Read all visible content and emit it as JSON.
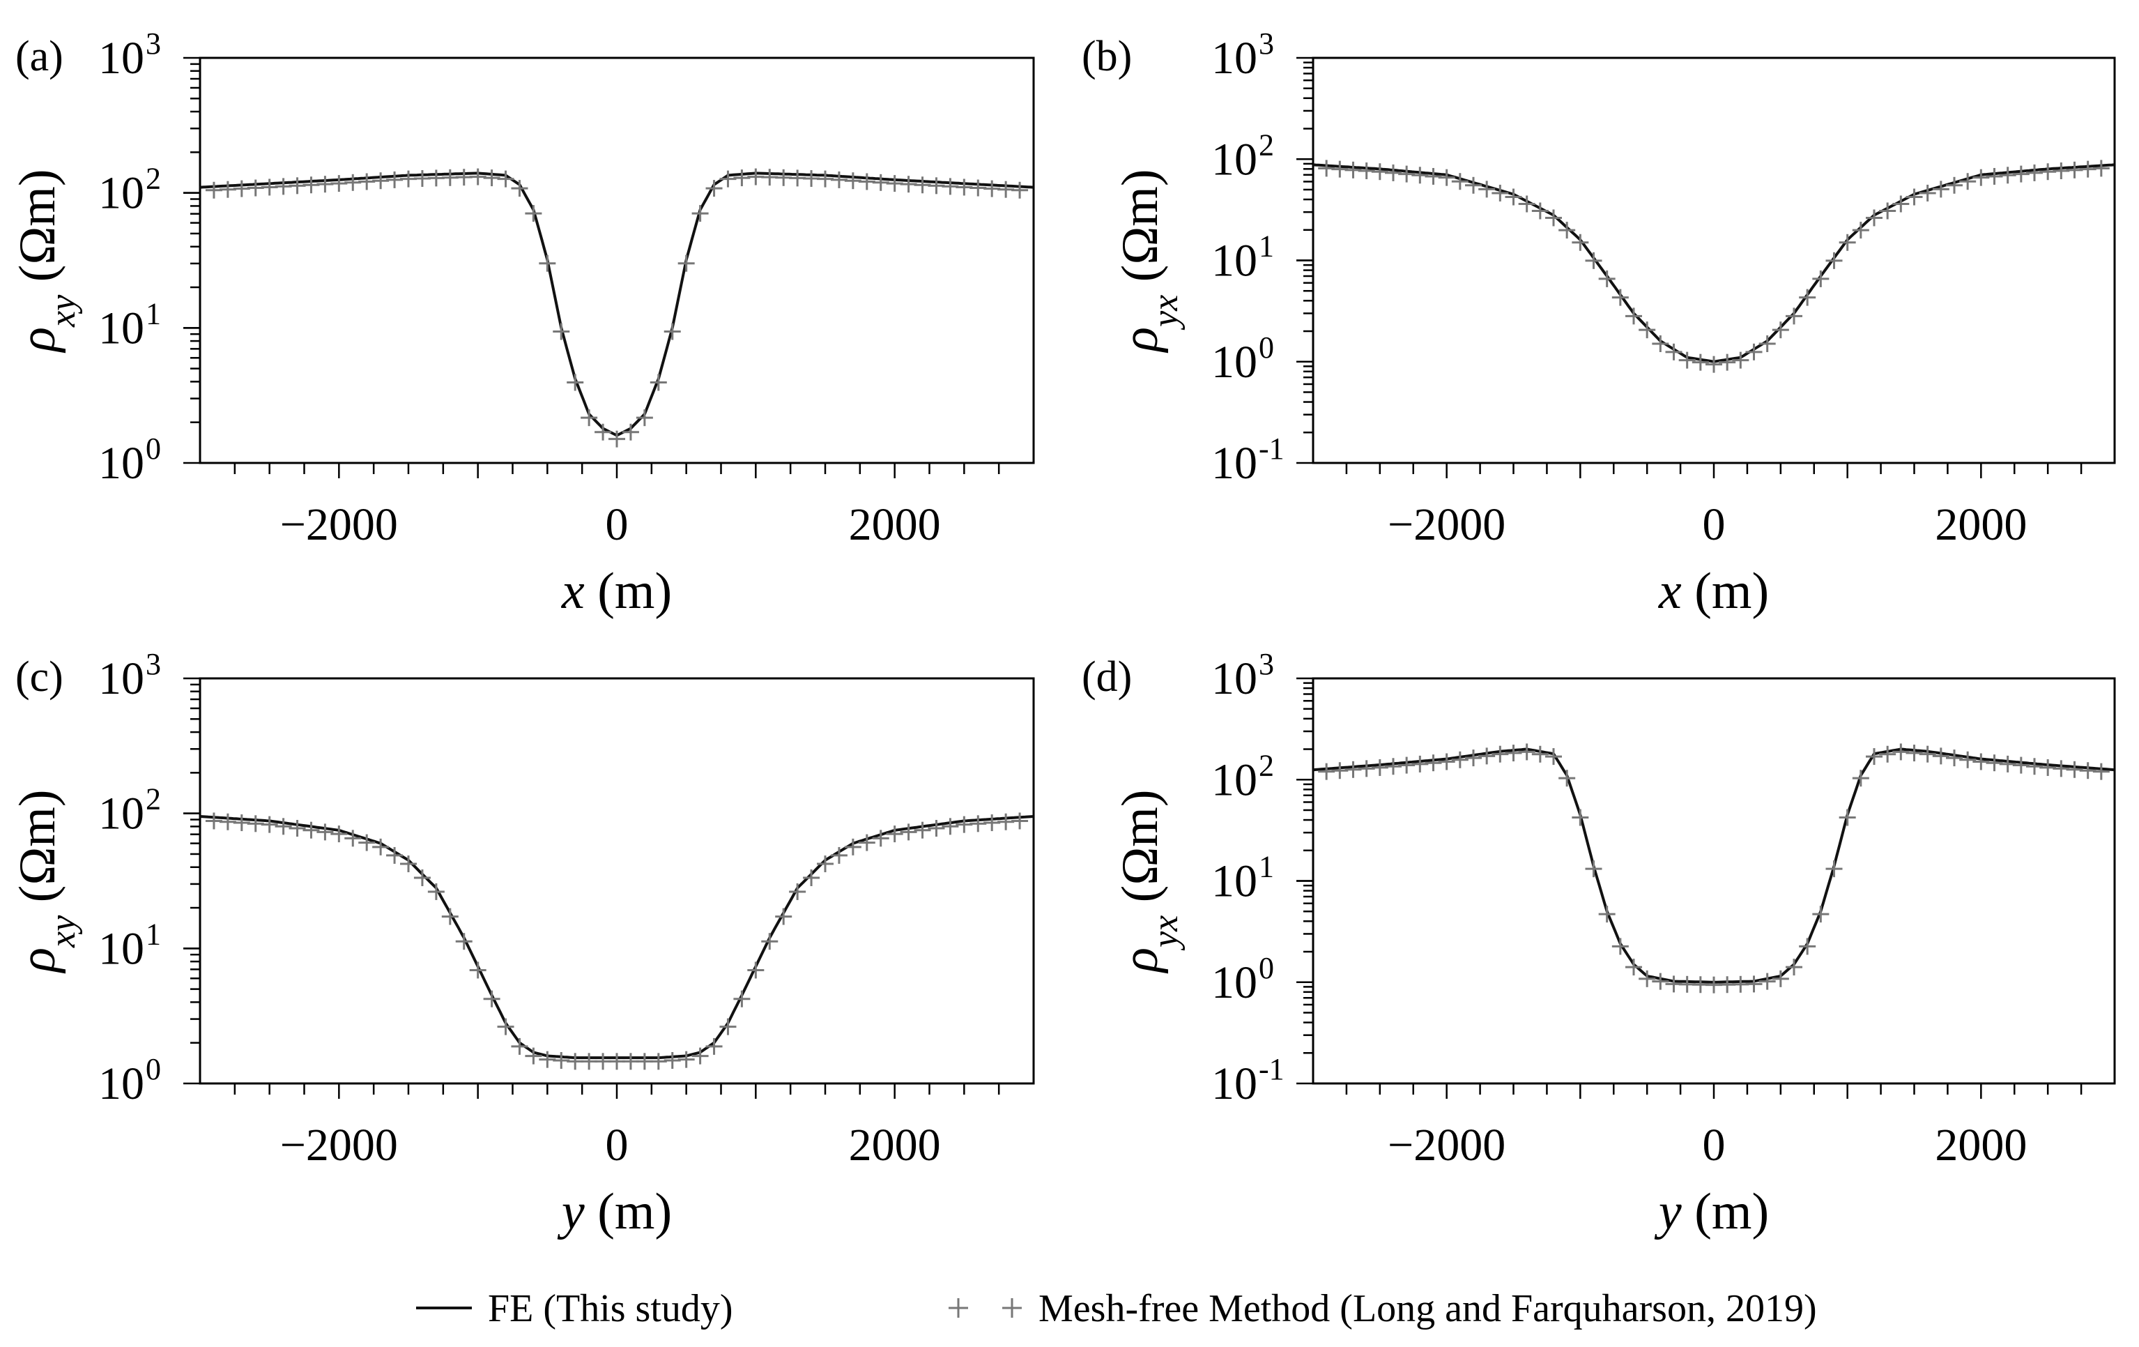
{
  "legend": {
    "fe_label": "FE (This study)",
    "mf_marker": "+ +",
    "mf_label": "Mesh-free Method (Long and Farquharson, 2019)"
  },
  "colors": {
    "fe_line": "#111111",
    "mesh_free": "#777777",
    "axes": "#000000"
  },
  "chart_data": [
    {
      "type": "line",
      "panel": "(a)",
      "xlabel_var": "x",
      "xlabel_unit": " (m)",
      "ylabel_sym": "ρ",
      "ylabel_sub": "xy",
      "ylabel_unit": " (Ωm)",
      "xlim": [
        -3000,
        3000
      ],
      "ylim_exp": [
        0,
        3
      ],
      "xticks": [
        -2000,
        0,
        2000
      ],
      "xtick_labels": [
        "−2000",
        "0",
        "2000"
      ],
      "yticks_exp": [
        0,
        1,
        2,
        3
      ],
      "ytick_labels": [
        "10",
        "10",
        "10",
        "10"
      ],
      "ytick_sup": [
        "0",
        "1",
        "2",
        "3"
      ],
      "profile": {
        "x": [
          -3000,
          -2000,
          -1500,
          -1000,
          -800,
          -700,
          -600,
          -500,
          -400,
          -300,
          -200,
          -100,
          0,
          100,
          200,
          300,
          400,
          500,
          600,
          700,
          800,
          1000,
          1500,
          2000,
          3000
        ],
        "y": [
          110,
          125,
          135,
          140,
          135,
          115,
          75,
          32,
          10,
          4.2,
          2.3,
          1.8,
          1.6,
          1.8,
          2.3,
          4.2,
          10,
          32,
          75,
          115,
          135,
          140,
          135,
          125,
          110
        ]
      },
      "series": [
        {
          "name": "FE (This study)",
          "style": "line"
        },
        {
          "name": "Mesh-free Method (Long and Farquharson, 2019)",
          "style": "plus",
          "step": 100
        }
      ]
    },
    {
      "type": "line",
      "panel": "(b)",
      "xlabel_var": "x",
      "xlabel_unit": " (m)",
      "ylabel_sym": "ρ",
      "ylabel_sub": "yx",
      "ylabel_unit": " (Ωm)",
      "xlim": [
        -3000,
        3000
      ],
      "ylim_exp": [
        -1,
        3
      ],
      "xticks": [
        -2000,
        0,
        2000
      ],
      "xtick_labels": [
        "−2000",
        "0",
        "2000"
      ],
      "yticks_exp": [
        -1,
        0,
        1,
        2,
        3
      ],
      "ytick_labels": [
        "10",
        "10",
        "10",
        "10",
        "10"
      ],
      "ytick_sup": [
        "-1",
        "0",
        "1",
        "2",
        "3"
      ],
      "profile": {
        "x": [
          -3000,
          -2500,
          -2000,
          -1500,
          -1200,
          -1000,
          -800,
          -600,
          -400,
          -200,
          0,
          200,
          400,
          600,
          800,
          1000,
          1200,
          1500,
          2000,
          2500,
          3000
        ],
        "y": [
          88,
          80,
          70,
          45,
          28,
          16,
          7,
          3,
          1.6,
          1.1,
          1.0,
          1.1,
          1.6,
          3,
          7,
          16,
          28,
          45,
          70,
          80,
          88
        ]
      },
      "series": [
        {
          "name": "FE (This study)",
          "style": "line"
        },
        {
          "name": "Mesh-free Method (Long and Farquharson, 2019)",
          "style": "plus",
          "step": 100
        }
      ]
    },
    {
      "type": "line",
      "panel": "(c)",
      "xlabel_var": "y",
      "xlabel_unit": " (m)",
      "ylabel_sym": "ρ",
      "ylabel_sub": "xy",
      "ylabel_unit": " (Ωm)",
      "xlim": [
        -3000,
        3000
      ],
      "ylim_exp": [
        0,
        3
      ],
      "xticks": [
        -2000,
        0,
        2000
      ],
      "xtick_labels": [
        "−2000",
        "0",
        "2000"
      ],
      "yticks_exp": [
        0,
        1,
        2,
        3
      ],
      "ytick_labels": [
        "10",
        "10",
        "10",
        "10"
      ],
      "ytick_sup": [
        "0",
        "1",
        "2",
        "3"
      ],
      "profile": {
        "x": [
          -3000,
          -2500,
          -2000,
          -1700,
          -1500,
          -1300,
          -1100,
          -900,
          -800,
          -700,
          -600,
          -500,
          -300,
          0,
          300,
          500,
          600,
          700,
          800,
          900,
          1100,
          1300,
          1500,
          1700,
          2000,
          2500,
          3000
        ],
        "y": [
          95,
          88,
          75,
          60,
          45,
          28,
          12,
          4.5,
          2.8,
          2.0,
          1.7,
          1.6,
          1.55,
          1.55,
          1.55,
          1.6,
          1.7,
          2.0,
          2.8,
          4.5,
          12,
          28,
          45,
          60,
          75,
          88,
          95
        ]
      },
      "series": [
        {
          "name": "FE (This study)",
          "style": "line"
        },
        {
          "name": "Mesh-free Method (Long and Farquharson, 2019)",
          "style": "plus",
          "step": 100
        }
      ]
    },
    {
      "type": "line",
      "panel": "(d)",
      "xlabel_var": "y",
      "xlabel_unit": " (m)",
      "ylabel_sym": "ρ",
      "ylabel_sub": "yx",
      "ylabel_unit": " (Ωm)",
      "xlim": [
        -3000,
        3000
      ],
      "ylim_exp": [
        -1,
        3
      ],
      "xticks": [
        -2000,
        0,
        2000
      ],
      "xtick_labels": [
        "−2000",
        "0",
        "2000"
      ],
      "yticks_exp": [
        -1,
        0,
        1,
        2,
        3
      ],
      "ytick_labels": [
        "10",
        "10",
        "10",
        "10",
        "10"
      ],
      "ytick_sup": [
        "-1",
        "0",
        "1",
        "2",
        "3"
      ],
      "profile": {
        "x": [
          -3000,
          -2500,
          -2000,
          -1600,
          -1400,
          -1200,
          -1100,
          -1000,
          -900,
          -800,
          -700,
          -600,
          -500,
          -300,
          0,
          300,
          500,
          600,
          700,
          800,
          900,
          1000,
          1100,
          1200,
          1400,
          1600,
          2000,
          2500,
          3000
        ],
        "y": [
          125,
          140,
          160,
          190,
          200,
          180,
          110,
          45,
          14,
          5,
          2.4,
          1.5,
          1.15,
          1.02,
          1.0,
          1.02,
          1.15,
          1.5,
          2.4,
          5,
          14,
          45,
          110,
          180,
          200,
          190,
          160,
          140,
          125
        ]
      },
      "series": [
        {
          "name": "FE (This study)",
          "style": "line"
        },
        {
          "name": "Mesh-free Method (Long and Farquharson, 2019)",
          "style": "plus",
          "step": 100
        }
      ]
    }
  ]
}
